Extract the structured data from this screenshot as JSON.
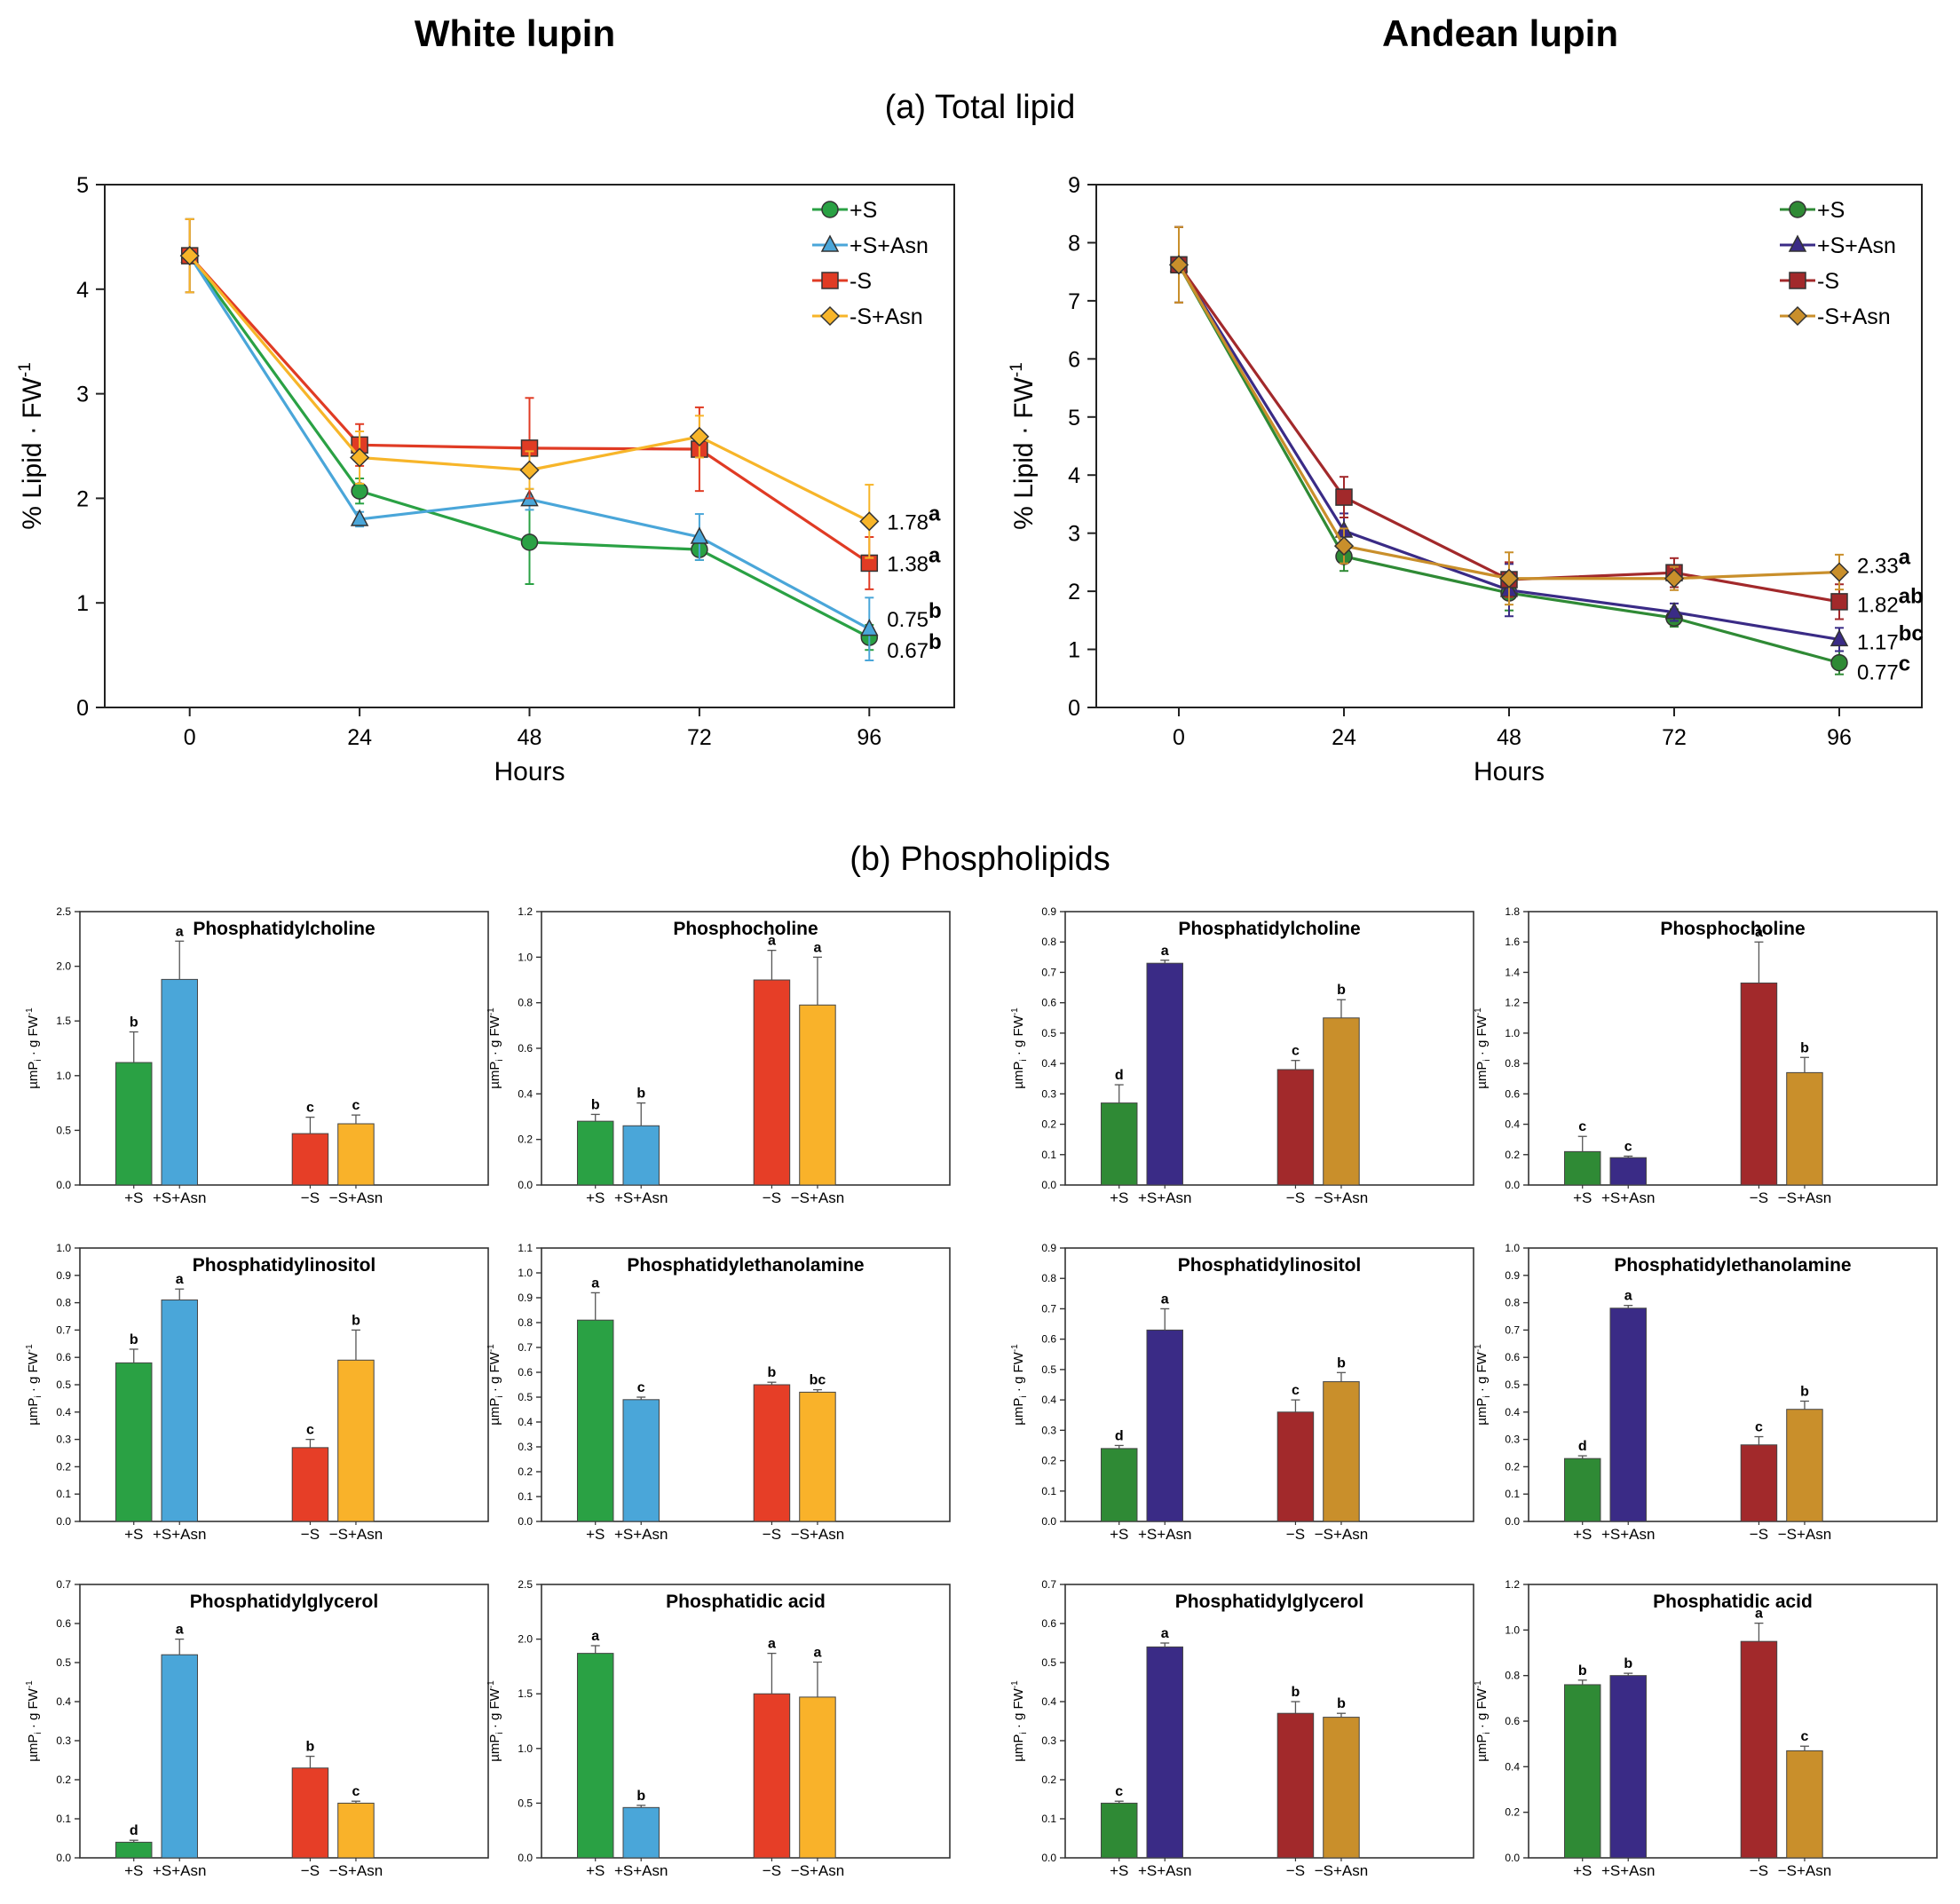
{
  "titles": {
    "white": "White lupin",
    "andean": "Andean lupin",
    "section_a": "(a)  Total lipid",
    "section_b": "(b)  Phospholipids"
  },
  "colors": {
    "white_series": [
      "#2aa144",
      "#4aa6d9",
      "#e03b24",
      "#f7b529"
    ],
    "andean_series": [
      "#2f8a35",
      "#3a2b86",
      "#a2292b",
      "#c98f2b"
    ],
    "bar_white": [
      "#2aa144",
      "#4aa6d9",
      "#e63e27",
      "#f9b22a"
    ],
    "bar_andean": [
      "#2f8a35",
      "#3a2b86",
      "#a2292b",
      "#c98f2b"
    ]
  },
  "chart_data": [
    {
      "id": "line_white",
      "type": "line",
      "title": "White lupin",
      "xlabel": "Hours",
      "ylabel": "% Lipid · FW",
      "ylabel_sup": "-1",
      "xlim": [
        -12,
        108
      ],
      "ylim": [
        0,
        5
      ],
      "xticks": [
        0,
        24,
        48,
        72,
        96
      ],
      "yticks": [
        0,
        1,
        2,
        3,
        4,
        5
      ],
      "series": [
        {
          "name": "+S",
          "marker": "circle",
          "x": [
            0,
            24,
            48,
            72,
            96
          ],
          "y": [
            4.32,
            2.07,
            1.58,
            1.51,
            0.67
          ],
          "err": [
            0.35,
            0.12,
            0.4,
            0.1,
            0.12
          ]
        },
        {
          "name": "+S+Asn",
          "marker": "triangle",
          "x": [
            0,
            24,
            48,
            72,
            96
          ],
          "y": [
            4.32,
            1.8,
            1.99,
            1.63,
            0.75
          ],
          "err": [
            0.35,
            0.07,
            0.1,
            0.22,
            0.3
          ]
        },
        {
          "name": "-S",
          "marker": "square",
          "x": [
            0,
            24,
            48,
            72,
            96
          ],
          "y": [
            4.32,
            2.51,
            2.48,
            2.47,
            1.38
          ],
          "err": [
            0.35,
            0.2,
            0.48,
            0.4,
            0.25
          ]
        },
        {
          "name": "-S+Asn",
          "marker": "diamond",
          "x": [
            0,
            24,
            48,
            72,
            96
          ],
          "y": [
            4.32,
            2.39,
            2.27,
            2.59,
            1.78
          ],
          "err": [
            0.35,
            0.25,
            0.18,
            0.2,
            0.35
          ]
        }
      ],
      "end_labels": [
        {
          "value": "1.78",
          "letter": "a",
          "y": 1.78
        },
        {
          "value": "1.38",
          "letter": "a",
          "y": 1.38
        },
        {
          "value": "0.75",
          "letter": "b",
          "y": 0.85
        },
        {
          "value": "0.67",
          "letter": "b",
          "y": 0.55
        }
      ]
    },
    {
      "id": "line_andean",
      "type": "line",
      "title": "Andean lupin",
      "xlabel": "Hours",
      "ylabel": "% Lipid · FW",
      "ylabel_sup": "-1",
      "xlim": [
        -12,
        108
      ],
      "ylim": [
        0,
        9
      ],
      "xticks": [
        0,
        24,
        48,
        72,
        96
      ],
      "yticks": [
        0,
        1,
        2,
        3,
        4,
        5,
        6,
        7,
        8,
        9
      ],
      "series": [
        {
          "name": "+S",
          "marker": "circle",
          "x": [
            0,
            24,
            48,
            72,
            96
          ],
          "y": [
            7.62,
            2.6,
            1.97,
            1.54,
            0.77
          ],
          "err": [
            0.65,
            0.25,
            0.3,
            0.15,
            0.2
          ]
        },
        {
          "name": "+S+Asn",
          "marker": "triangle",
          "x": [
            0,
            24,
            48,
            72,
            96
          ],
          "y": [
            7.62,
            3.04,
            2.02,
            1.64,
            1.17
          ],
          "err": [
            0.65,
            0.3,
            0.45,
            0.15,
            0.2
          ]
        },
        {
          "name": "-S",
          "marker": "square",
          "x": [
            0,
            24,
            48,
            72,
            96
          ],
          "y": [
            7.62,
            3.62,
            2.2,
            2.32,
            1.82
          ],
          "err": [
            0.65,
            0.35,
            0.3,
            0.25,
            0.3
          ]
        },
        {
          "name": "-S+Asn",
          "marker": "diamond",
          "x": [
            0,
            24,
            48,
            72,
            96
          ],
          "y": [
            7.62,
            2.78,
            2.22,
            2.22,
            2.33
          ],
          "err": [
            0.65,
            0.3,
            0.45,
            0.2,
            0.3
          ]
        }
      ],
      "end_labels": [
        {
          "value": "2.33",
          "letter": "a",
          "y": 2.45
        },
        {
          "value": "1.82",
          "letter": "ab",
          "y": 1.78
        },
        {
          "value": "1.17",
          "letter": "bc",
          "y": 1.14
        },
        {
          "value": "0.77",
          "letter": "c",
          "y": 0.62
        }
      ]
    },
    {
      "id": "w_pc",
      "type": "bar",
      "palette": "white",
      "title": "Phosphatidylcholine",
      "categories": [
        "+S",
        "+S+Asn",
        "−S",
        "−S+Asn"
      ],
      "values": [
        1.12,
        1.88,
        0.47,
        0.56
      ],
      "err": [
        0.28,
        0.35,
        0.15,
        0.08
      ],
      "letters": [
        "b",
        "a",
        "c",
        "c"
      ],
      "ylim": [
        0,
        2.5
      ],
      "yticks": [
        "0.0",
        "0.5",
        "1.0",
        "1.5",
        "2.0",
        "2.5"
      ],
      "ylabel": "µmP",
      "ylabel_sub": "i",
      "ylabel_tail": " · g FW",
      "ylabel_sup": "-1"
    },
    {
      "id": "w_pcho",
      "type": "bar",
      "palette": "white",
      "title": "Phosphocholine",
      "categories": [
        "+S",
        "+S+Asn",
        "−S",
        "−S+Asn"
      ],
      "values": [
        0.28,
        0.26,
        0.9,
        0.79
      ],
      "err": [
        0.03,
        0.1,
        0.13,
        0.21
      ],
      "letters": [
        "b",
        "b",
        "a",
        "a"
      ],
      "ylim": [
        0,
        1.2
      ],
      "yticks": [
        "0.0",
        "0.2",
        "0.4",
        "0.6",
        "0.8",
        "1.0",
        "1.2"
      ],
      "ylabel": "µmP",
      "ylabel_sub": "i",
      "ylabel_tail": " · g FW",
      "ylabel_sup": "-1"
    },
    {
      "id": "a_pc",
      "type": "bar",
      "palette": "andean",
      "title": "Phosphatidylcholine",
      "categories": [
        "+S",
        "+S+Asn",
        "−S",
        "−S+Asn"
      ],
      "values": [
        0.27,
        0.73,
        0.38,
        0.55
      ],
      "err": [
        0.06,
        0.01,
        0.03,
        0.06
      ],
      "letters": [
        "d",
        "a",
        "c",
        "b"
      ],
      "ylim": [
        0,
        0.9
      ],
      "yticks": [
        "0.0",
        "0.1",
        "0.2",
        "0.3",
        "0.4",
        "0.5",
        "0.6",
        "0.7",
        "0.8",
        "0.9"
      ],
      "ylabel": "µmP",
      "ylabel_sub": "i",
      "ylabel_tail": " · g FW",
      "ylabel_sup": "-1"
    },
    {
      "id": "a_pcho",
      "type": "bar",
      "palette": "andean",
      "title": "Phosphocholine",
      "categories": [
        "+S",
        "+S+Asn",
        "−S",
        "−S+Asn"
      ],
      "values": [
        0.22,
        0.18,
        1.33,
        0.74
      ],
      "err": [
        0.1,
        0.01,
        0.27,
        0.1
      ],
      "letters": [
        "c",
        "c",
        "a",
        "b"
      ],
      "ylim": [
        0,
        1.8
      ],
      "yticks": [
        "0.0",
        "0.2",
        "0.4",
        "0.6",
        "0.8",
        "1.0",
        "1.2",
        "1.4",
        "1.6",
        "1.8"
      ],
      "ylabel": "µmP",
      "ylabel_sub": "i",
      "ylabel_tail": " · g FW",
      "ylabel_sup": "-1"
    },
    {
      "id": "w_pi",
      "type": "bar",
      "palette": "white",
      "title": "Phosphatidylinositol",
      "categories": [
        "+S",
        "+S+Asn",
        "−S",
        "−S+Asn"
      ],
      "values": [
        0.58,
        0.81,
        0.27,
        0.59
      ],
      "err": [
        0.05,
        0.04,
        0.03,
        0.11
      ],
      "letters": [
        "b",
        "a",
        "c",
        "b"
      ],
      "ylim": [
        0,
        1.0
      ],
      "yticks": [
        "0.0",
        "0.1",
        "0.2",
        "0.3",
        "0.4",
        "0.5",
        "0.6",
        "0.7",
        "0.8",
        "0.9",
        "1.0"
      ],
      "ylabel": "µmP",
      "ylabel_sub": "i",
      "ylabel_tail": " · g FW",
      "ylabel_sup": "-1"
    },
    {
      "id": "w_pe",
      "type": "bar",
      "palette": "white",
      "title": "Phosphatidylethanolamine",
      "categories": [
        "+S",
        "+S+Asn",
        "−S",
        "−S+Asn"
      ],
      "values": [
        0.81,
        0.49,
        0.55,
        0.52
      ],
      "err": [
        0.11,
        0.01,
        0.01,
        0.01
      ],
      "letters": [
        "a",
        "c",
        "b",
        "bc"
      ],
      "ylim": [
        0,
        1.1
      ],
      "yticks": [
        "0.0",
        "0.1",
        "0.2",
        "0.3",
        "0.4",
        "0.5",
        "0.6",
        "0.7",
        "0.8",
        "0.9",
        "1.0",
        "1.1"
      ],
      "ylabel": "µmP",
      "ylabel_sub": "i",
      "ylabel_tail": " · g FW",
      "ylabel_sup": "-1"
    },
    {
      "id": "a_pi",
      "type": "bar",
      "palette": "andean",
      "title": "Phosphatidylinositol",
      "categories": [
        "+S",
        "+S+Asn",
        "−S",
        "−S+Asn"
      ],
      "values": [
        0.24,
        0.63,
        0.36,
        0.46
      ],
      "err": [
        0.01,
        0.07,
        0.04,
        0.03
      ],
      "letters": [
        "d",
        "a",
        "c",
        "b"
      ],
      "ylim": [
        0,
        0.9
      ],
      "yticks": [
        "0.0",
        "0.1",
        "0.2",
        "0.3",
        "0.4",
        "0.5",
        "0.6",
        "0.7",
        "0.8",
        "0.9"
      ],
      "ylabel": "µmP",
      "ylabel_sub": "i",
      "ylabel_tail": " · g FW",
      "ylabel_sup": "-1"
    },
    {
      "id": "a_pe",
      "type": "bar",
      "palette": "andean",
      "title": "Phosphatidylethanolamine",
      "categories": [
        "+S",
        "+S+Asn",
        "−S",
        "−S+Asn"
      ],
      "values": [
        0.23,
        0.78,
        0.28,
        0.41
      ],
      "err": [
        0.01,
        0.01,
        0.03,
        0.03
      ],
      "letters": [
        "d",
        "a",
        "c",
        "b"
      ],
      "ylim": [
        0,
        1.0
      ],
      "yticks": [
        "0.0",
        "0.1",
        "0.2",
        "0.3",
        "0.4",
        "0.5",
        "0.6",
        "0.7",
        "0.8",
        "0.9",
        "1.0"
      ],
      "ylabel": "µmP",
      "ylabel_sub": "i",
      "ylabel_tail": " · g FW",
      "ylabel_sup": "-1"
    },
    {
      "id": "w_pg",
      "type": "bar",
      "palette": "white",
      "title": "Phosphatidylglycerol",
      "categories": [
        "+S",
        "+S+Asn",
        "−S",
        "−S+Asn"
      ],
      "values": [
        0.04,
        0.52,
        0.23,
        0.14
      ],
      "err": [
        0.005,
        0.04,
        0.03,
        0.005
      ],
      "letters": [
        "d",
        "a",
        "b",
        "c"
      ],
      "ylim": [
        0,
        0.7
      ],
      "yticks": [
        "0.0",
        "0.1",
        "0.2",
        "0.3",
        "0.4",
        "0.5",
        "0.6",
        "0.7"
      ],
      "ylabel": "µmP",
      "ylabel_sub": "i",
      "ylabel_tail": " · g FW",
      "ylabel_sup": "-1"
    },
    {
      "id": "w_pa",
      "type": "bar",
      "palette": "white",
      "title": "Phosphatidic acid",
      "categories": [
        "+S",
        "+S+Asn",
        "−S",
        "−S+Asn"
      ],
      "values": [
        1.87,
        0.46,
        1.5,
        1.47
      ],
      "err": [
        0.07,
        0.02,
        0.37,
        0.32
      ],
      "letters": [
        "a",
        "b",
        "a",
        "a"
      ],
      "ylim": [
        0,
        2.5
      ],
      "yticks": [
        "0.0",
        "0.5",
        "1.0",
        "1.5",
        "2.0",
        "2.5"
      ],
      "ylabel": "µmP",
      "ylabel_sub": "i",
      "ylabel_tail": " · g FW",
      "ylabel_sup": "-1"
    },
    {
      "id": "a_pg",
      "type": "bar",
      "palette": "andean",
      "title": "Phosphatidylglycerol",
      "categories": [
        "+S",
        "+S+Asn",
        "−S",
        "−S+Asn"
      ],
      "values": [
        0.14,
        0.54,
        0.37,
        0.36
      ],
      "err": [
        0.005,
        0.01,
        0.03,
        0.01
      ],
      "letters": [
        "c",
        "a",
        "b",
        "b"
      ],
      "ylim": [
        0,
        0.7
      ],
      "yticks": [
        "0.0",
        "0.1",
        "0.2",
        "0.3",
        "0.4",
        "0.5",
        "0.6",
        "0.7"
      ],
      "ylabel": "µmP",
      "ylabel_sub": "i",
      "ylabel_tail": " · g FW",
      "ylabel_sup": "-1"
    },
    {
      "id": "a_pa",
      "type": "bar",
      "palette": "andean",
      "title": "Phosphatidic acid",
      "categories": [
        "+S",
        "+S+Asn",
        "−S",
        "−S+Asn"
      ],
      "values": [
        0.76,
        0.8,
        0.95,
        0.47
      ],
      "err": [
        0.02,
        0.01,
        0.08,
        0.02
      ],
      "letters": [
        "b",
        "b",
        "a",
        "c"
      ],
      "ylim": [
        0,
        1.2
      ],
      "yticks": [
        "0.0",
        "0.2",
        "0.4",
        "0.6",
        "0.8",
        "1.0",
        "1.2"
      ],
      "ylabel": "µmP",
      "ylabel_sub": "i",
      "ylabel_tail": " · g FW",
      "ylabel_sup": "-1"
    }
  ]
}
